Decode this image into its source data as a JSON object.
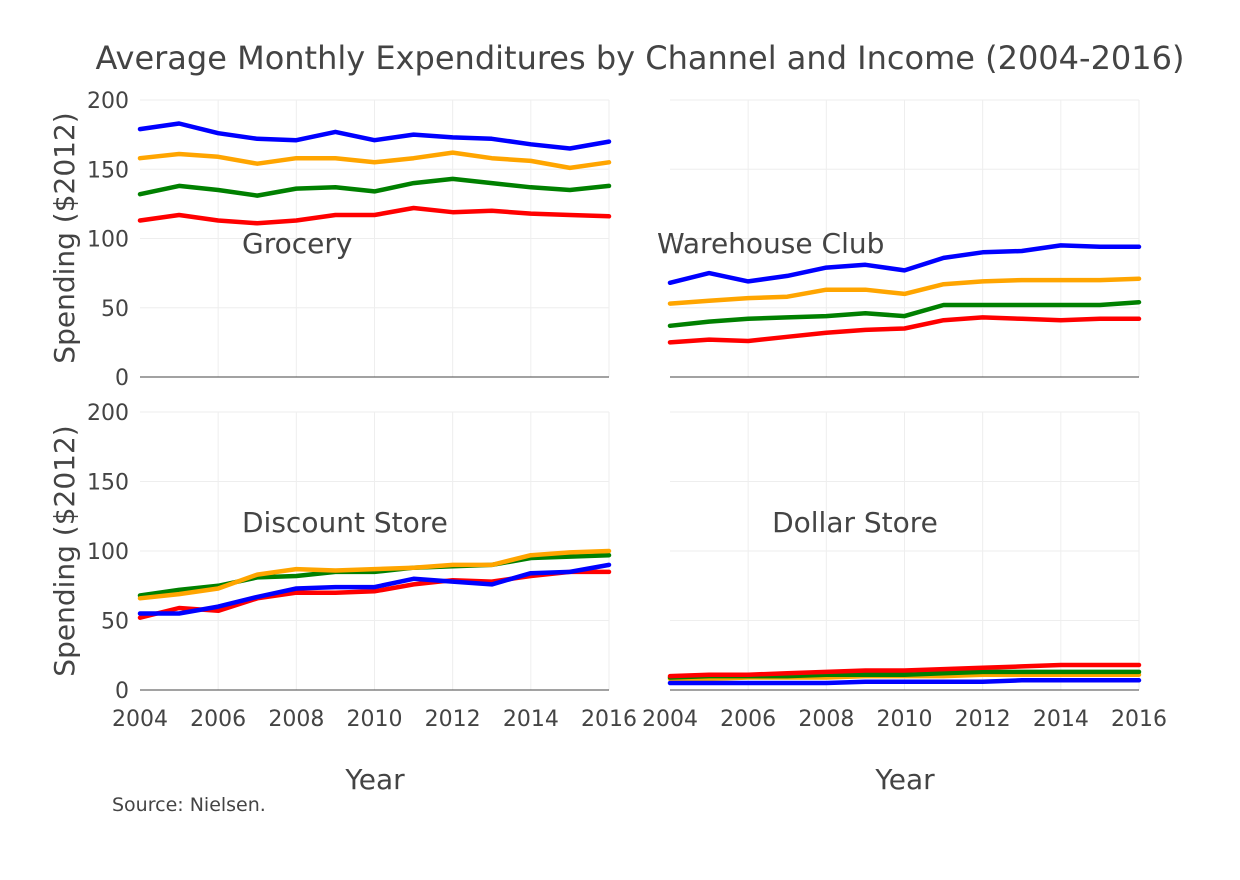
{
  "chart_data": {
    "type": "line",
    "title": "Average Monthly Expenditures by Channel and Income (2004-2016)",
    "ylabel": "Spending ($2012)",
    "xlabel": "Year",
    "source": "Source: Nielsen.",
    "ylim": [
      0,
      200
    ],
    "xlim": [
      2004,
      2016
    ],
    "y_ticks": [
      0,
      50,
      100,
      150,
      200
    ],
    "x_ticks": [
      2004,
      2006,
      2008,
      2010,
      2012,
      2014,
      2016
    ],
    "x": [
      2004,
      2005,
      2006,
      2007,
      2008,
      2009,
      2010,
      2011,
      2012,
      2013,
      2014,
      2015,
      2016
    ],
    "grid": true,
    "legend": "none",
    "panels": [
      {
        "label": "Grocery",
        "series": [
          {
            "color": "#0000ff",
            "values": [
              179,
              183,
              176,
              172,
              171,
              177,
              171,
              175,
              173,
              172,
              168,
              165,
              170
            ]
          },
          {
            "color": "#ffa500",
            "values": [
              158,
              161,
              159,
              154,
              158,
              158,
              155,
              158,
              162,
              158,
              156,
              151,
              155
            ]
          },
          {
            "color": "#008000",
            "values": [
              132,
              138,
              135,
              131,
              136,
              137,
              134,
              140,
              143,
              140,
              137,
              135,
              138
            ]
          },
          {
            "color": "#ff0000",
            "values": [
              113,
              117,
              113,
              111,
              113,
              117,
              117,
              122,
              119,
              120,
              118,
              117,
              116
            ]
          }
        ]
      },
      {
        "label": "Warehouse Club",
        "series": [
          {
            "color": "#0000ff",
            "values": [
              68,
              75,
              69,
              73,
              79,
              81,
              77,
              86,
              90,
              91,
              95,
              94,
              94
            ]
          },
          {
            "color": "#ffa500",
            "values": [
              53,
              55,
              57,
              58,
              63,
              63,
              60,
              67,
              69,
              70,
              70,
              70,
              71
            ]
          },
          {
            "color": "#008000",
            "values": [
              37,
              40,
              42,
              43,
              44,
              46,
              44,
              52,
              52,
              52,
              52,
              52,
              54
            ]
          },
          {
            "color": "#ff0000",
            "values": [
              25,
              27,
              26,
              29,
              32,
              34,
              35,
              41,
              43,
              42,
              41,
              42,
              42
            ]
          }
        ]
      },
      {
        "label": "Discount Store",
        "series": [
          {
            "color": "#ff0000",
            "values": [
              52,
              59,
              57,
              66,
              70,
              70,
              71,
              76,
              79,
              78,
              82,
              85,
              85
            ]
          },
          {
            "color": "#008000",
            "values": [
              68,
              72,
              75,
              81,
              82,
              85,
              85,
              88,
              89,
              90,
              95,
              96,
              97
            ]
          },
          {
            "color": "#ffa500",
            "values": [
              66,
              69,
              73,
              83,
              87,
              86,
              87,
              88,
              90,
              90,
              97,
              99,
              100
            ]
          },
          {
            "color": "#0000ff",
            "values": [
              55,
              55,
              60,
              67,
              73,
              74,
              74,
              80,
              78,
              76,
              84,
              85,
              90
            ]
          }
        ]
      },
      {
        "label": "Dollar Store",
        "series": [
          {
            "color": "#ffa500",
            "values": [
              8,
              8,
              9,
              9,
              9,
              10,
              10,
              10,
              11,
              11,
              11,
              11,
              11
            ]
          },
          {
            "color": "#008000",
            "values": [
              9,
              10,
              10,
              10,
              11,
              11,
              11,
              12,
              13,
              13,
              13,
              13,
              13
            ]
          },
          {
            "color": "#ff0000",
            "values": [
              10,
              11,
              11,
              12,
              13,
              14,
              14,
              15,
              16,
              17,
              18,
              18,
              18
            ]
          },
          {
            "color": "#0000ff",
            "values": [
              5,
              5,
              5,
              5,
              5,
              6,
              6,
              6,
              6,
              7,
              7,
              7,
              7
            ]
          }
        ]
      }
    ]
  }
}
